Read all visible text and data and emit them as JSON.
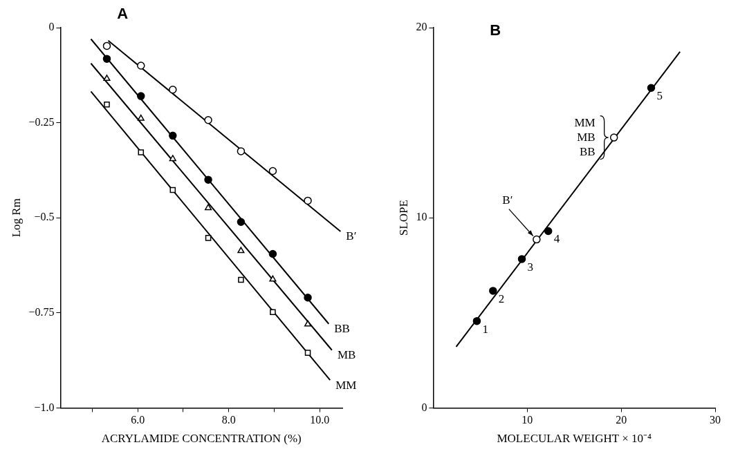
{
  "chart_data": [
    {
      "type": "scatter",
      "title": "A",
      "xlabel": "ACRYLAMIDE CONCENTRATION (%)",
      "ylabel": "Log Rm",
      "xlim": [
        4.3,
        10.5
      ],
      "ylim": [
        -1.0,
        0
      ],
      "xticks": [
        {
          "value": 5,
          "label": null
        },
        {
          "value": 6,
          "label": "6.0"
        },
        {
          "value": 7,
          "label": null
        },
        {
          "value": 8,
          "label": "8.0"
        },
        {
          "value": 9,
          "label": null
        },
        {
          "value": 10,
          "label": "10.0"
        }
      ],
      "yticks": [
        {
          "value": -1.0,
          "label": "−1.0"
        },
        {
          "value": -0.75,
          "label": "−0.75"
        },
        {
          "value": -0.5,
          "label": "−0.5"
        },
        {
          "value": -0.25,
          "label": "−0.25"
        },
        0
      ],
      "series": [
        {
          "marker": "circle",
          "color": "#ffffff",
          "x": [
            5.32,
            6.07,
            6.77,
            7.55,
            8.27,
            8.97,
            9.74
          ],
          "values": [
            -0.048,
            -0.1,
            -0.163,
            -0.243,
            -0.325,
            -0.377,
            -0.455
          ]
        },
        {
          "marker": "circle",
          "color": "#000000",
          "x": [
            5.32,
            6.07,
            6.77,
            7.55,
            8.27,
            8.97,
            9.74
          ],
          "values": [
            -0.082,
            -0.18,
            -0.284,
            -0.4,
            -0.511,
            -0.595,
            -0.71
          ]
        },
        {
          "marker": "triangle",
          "color": "#ffffff",
          "x": [
            5.32,
            6.07,
            6.77,
            7.55,
            8.27,
            8.97,
            9.74
          ],
          "values": [
            -0.134,
            -0.239,
            -0.345,
            -0.474,
            -0.587,
            -0.662,
            -0.78
          ]
        },
        {
          "marker": "square",
          "color": "#ffffff",
          "x": [
            5.32,
            6.07,
            6.77,
            7.55,
            8.27,
            8.97,
            9.74
          ],
          "values": [
            -0.202,
            -0.328,
            -0.427,
            -0.553,
            -0.663,
            -0.748,
            -0.855
          ]
        },
        {
          "type": "line",
          "name": "B′",
          "color": "#000000",
          "x": [
            5.35,
            10.46
          ],
          "values": [
            -0.034,
            -0.536
          ]
        },
        {
          "type": "line",
          "name": "BB",
          "color": "#000000",
          "x": [
            4.97,
            10.2
          ],
          "values": [
            -0.03,
            -0.779
          ]
        },
        {
          "type": "line",
          "name": "MB",
          "color": "#000000",
          "x": [
            4.97,
            10.27
          ],
          "values": [
            -0.094,
            -0.848
          ]
        },
        {
          "type": "line",
          "name": "MM",
          "color": "#000000",
          "x": [
            4.97,
            10.23
          ],
          "values": [
            -0.168,
            -0.927
          ]
        }
      ]
    },
    {
      "type": "scatter",
      "title": "B",
      "xlabel": "MOLECULAR WEIGHT × 10⁻⁴",
      "ylabel": "SLOPE",
      "xlim": [
        0,
        30
      ],
      "ylim": [
        0,
        20
      ],
      "xticks": [
        10,
        20,
        30
      ],
      "yticks": [
        0,
        10,
        20
      ],
      "series": [
        {
          "type": "line",
          "color": "#000000",
          "x": [
            2.44,
            26.26
          ],
          "values": [
            3.22,
            18.73
          ]
        },
        {
          "marker": "circle",
          "color": "#000000",
          "x": [
            4.64,
            6.36,
            9.43,
            12.24,
            23.19
          ],
          "values": [
            4.57,
            6.16,
            7.83,
            9.3,
            16.83
          ]
        },
        {
          "marker": "circle",
          "color": "#ffffff",
          "x": [
            11.0,
            19.23
          ],
          "values": [
            8.86,
            14.22
          ]
        }
      ],
      "annotations": [
        {
          "text": "1",
          "x": 4.64,
          "y": 4.57
        },
        {
          "text": "2",
          "x": 6.36,
          "y": 6.16
        },
        {
          "text": "3",
          "x": 9.43,
          "y": 7.83
        },
        {
          "text": "4",
          "x": 12.24,
          "y": 9.3
        },
        {
          "text": "5",
          "x": 23.19,
          "y": 16.83
        },
        {
          "text": "B′",
          "x": 11.0,
          "y": 8.86
        },
        {
          "text": "MM\nMB\nBB",
          "x": 19.23,
          "y": 14.22
        }
      ]
    }
  ]
}
